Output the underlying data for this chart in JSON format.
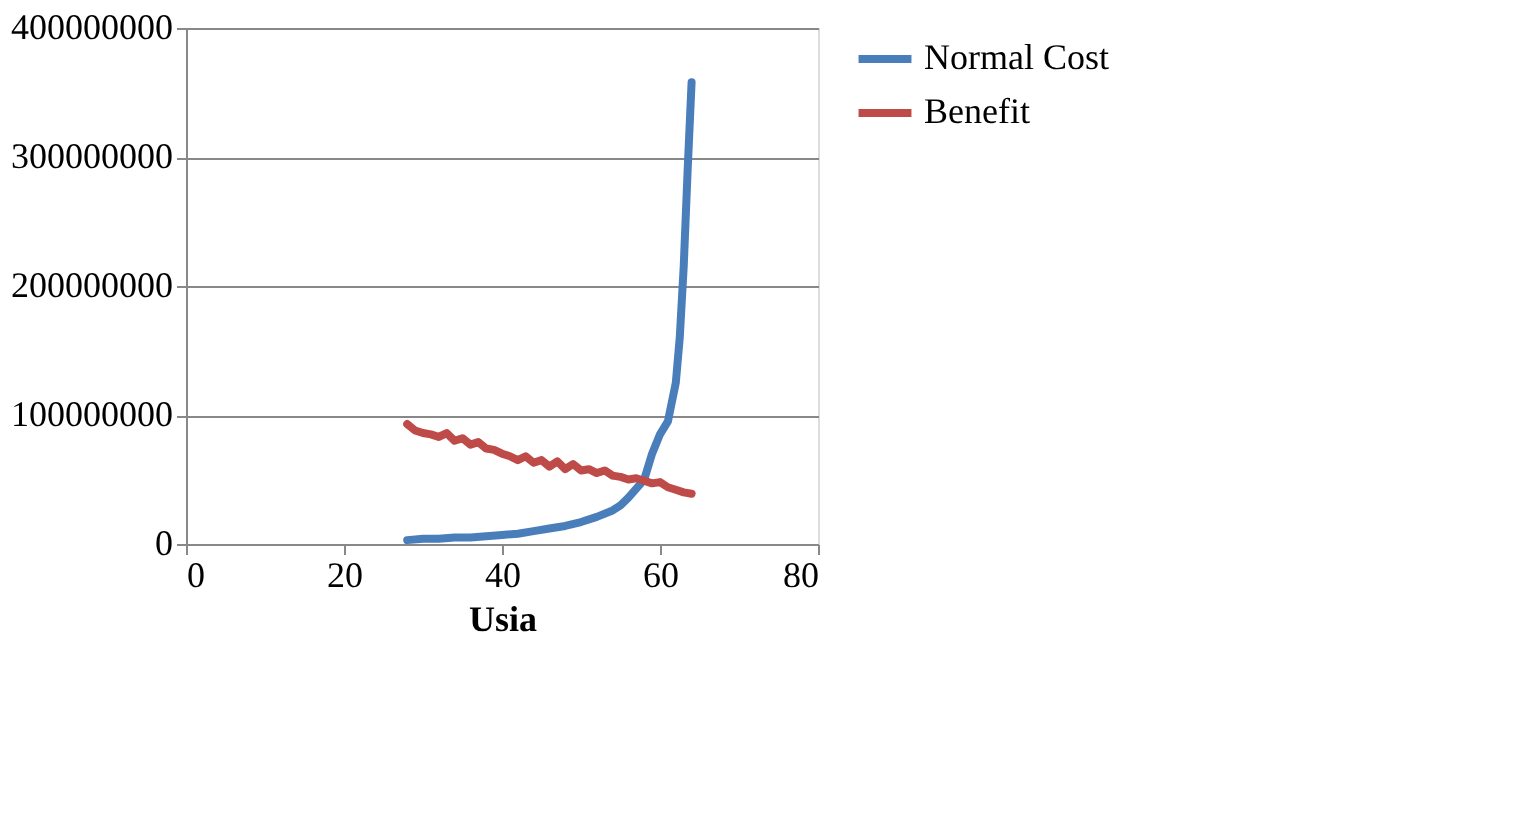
{
  "chart_data": {
    "type": "line",
    "xlabel": "Usia",
    "xlim": [
      0,
      80
    ],
    "xticks": [
      0,
      20,
      40,
      60,
      80
    ],
    "ylim": [
      0,
      400000000
    ],
    "yticks": [
      0,
      100000000,
      200000000,
      300000000,
      400000000
    ],
    "grid": "y",
    "legend": "right",
    "line_style": "solid",
    "marker": "none",
    "series": [
      {
        "name": "Normal Cost",
        "color": "#4a7ebb",
        "x": [
          28,
          30,
          32,
          34,
          36,
          38,
          40,
          42,
          44,
          46,
          48,
          50,
          52,
          54,
          55,
          56,
          57,
          58,
          59,
          60,
          61,
          62,
          62.5,
          63,
          63.5,
          64
        ],
        "values": [
          3000000,
          4000000,
          4000000,
          5000000,
          5000000,
          6000000,
          7000000,
          8000000,
          10000000,
          12000000,
          14000000,
          17000000,
          21000000,
          26000000,
          30000000,
          36000000,
          43000000,
          50000000,
          70000000,
          85000000,
          95000000,
          125000000,
          160000000,
          215000000,
          290000000,
          358000000
        ]
      },
      {
        "name": "Benefit",
        "color": "#be4b48",
        "x": [
          28,
          29,
          30,
          31,
          32,
          33,
          34,
          35,
          36,
          37,
          38,
          39,
          40,
          41,
          42,
          43,
          44,
          45,
          46,
          47,
          48,
          49,
          50,
          51,
          52,
          53,
          54,
          55,
          56,
          57,
          58,
          59,
          60,
          61,
          62,
          63,
          64
        ],
        "values": [
          93000000,
          88000000,
          86000000,
          85000000,
          83000000,
          86000000,
          80000000,
          82000000,
          77000000,
          79000000,
          74000000,
          73000000,
          70000000,
          68000000,
          65000000,
          68000000,
          63000000,
          65000000,
          60000000,
          64000000,
          58000000,
          62000000,
          57000000,
          58000000,
          55000000,
          57000000,
          53000000,
          52000000,
          50000000,
          51000000,
          49000000,
          47000000,
          48000000,
          44000000,
          42000000,
          40000000,
          39000000
        ]
      }
    ]
  }
}
